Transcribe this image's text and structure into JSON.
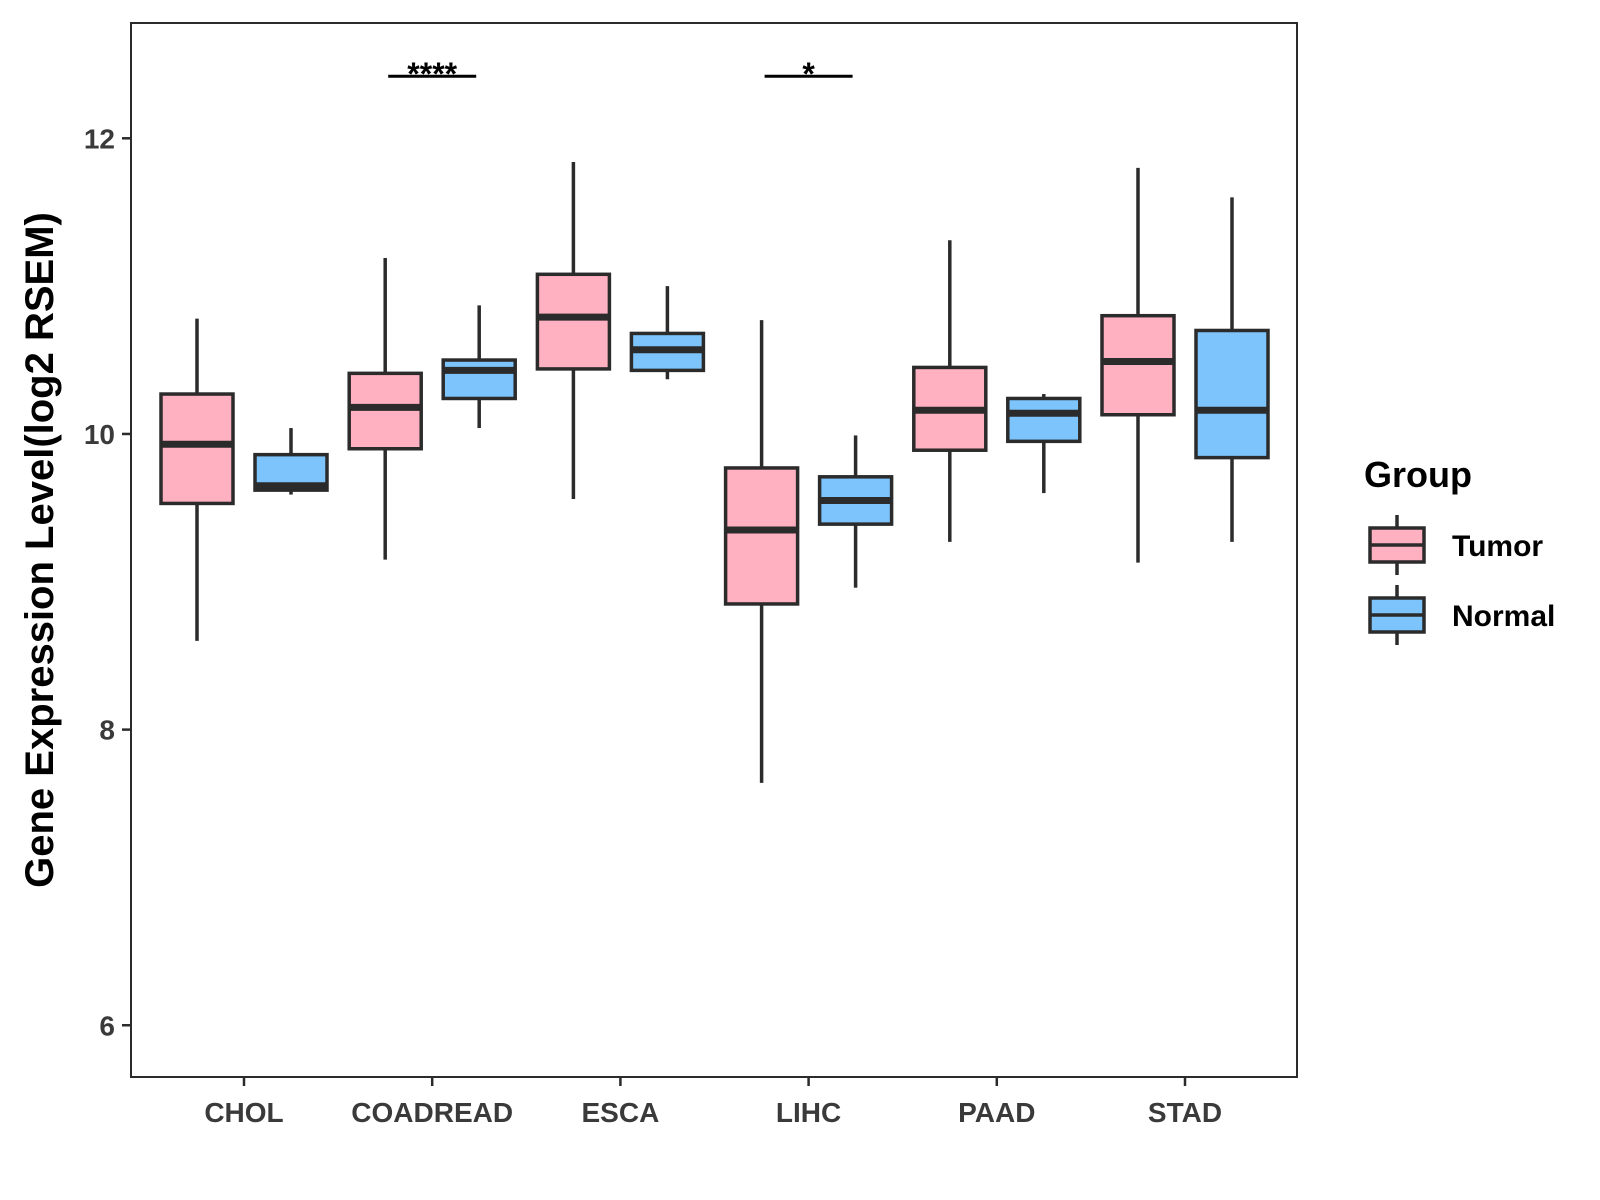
{
  "chart_data": {
    "type": "boxplot",
    "title": "",
    "xlabel": "",
    "ylabel": "Gene Expression Level(log2 RSEM)",
    "ylim": [
      5.65,
      12.78
    ],
    "yticks": [
      6,
      8,
      10,
      12
    ],
    "ytick_labels": [
      "6",
      "8",
      "10",
      "12"
    ],
    "grid": false,
    "categories": [
      "CHOL",
      "COADREAD",
      "ESCA",
      "LIHC",
      "PAAD",
      "STAD"
    ],
    "legend": {
      "title": "Group",
      "position": "right",
      "entries": [
        {
          "name": "Tumor",
          "color": "#ffb1c1"
        },
        {
          "name": "Normal",
          "color": "#7cc4fb"
        }
      ]
    },
    "series": [
      {
        "name": "Tumor",
        "color": "#ffb1c1",
        "boxes": [
          {
            "min": 8.6,
            "q1": 9.53,
            "median": 9.93,
            "q3": 10.27,
            "max": 10.78
          },
          {
            "min": 9.15,
            "q1": 9.9,
            "median": 10.18,
            "q3": 10.41,
            "max": 11.19
          },
          {
            "min": 9.56,
            "q1": 10.44,
            "median": 10.79,
            "q3": 11.08,
            "max": 11.84
          },
          {
            "min": 7.64,
            "q1": 8.85,
            "median": 9.35,
            "q3": 9.77,
            "max": 10.77
          },
          {
            "min": 9.27,
            "q1": 9.89,
            "median": 10.16,
            "q3": 10.45,
            "max": 11.31
          },
          {
            "min": 9.13,
            "q1": 10.13,
            "median": 10.49,
            "q3": 10.8,
            "max": 11.8
          }
        ]
      },
      {
        "name": "Normal",
        "color": "#7cc4fb",
        "boxes": [
          {
            "min": 9.59,
            "q1": 9.62,
            "median": 9.65,
            "q3": 9.86,
            "max": 10.04
          },
          {
            "min": 10.04,
            "q1": 10.24,
            "median": 10.43,
            "q3": 10.5,
            "max": 10.87
          },
          {
            "min": 10.37,
            "q1": 10.43,
            "median": 10.57,
            "q3": 10.68,
            "max": 11.0
          },
          {
            "min": 8.96,
            "q1": 9.39,
            "median": 9.55,
            "q3": 9.71,
            "max": 9.99
          },
          {
            "min": 9.6,
            "q1": 9.95,
            "median": 10.14,
            "q3": 10.24,
            "max": 10.27
          },
          {
            "min": 9.27,
            "q1": 9.84,
            "median": 10.16,
            "q3": 10.7,
            "max": 11.6
          }
        ]
      }
    ],
    "annotations": [
      {
        "category_index": 1,
        "label": "****",
        "y": 12.42
      },
      {
        "category_index": 3,
        "label": "*",
        "y": 12.42
      }
    ]
  }
}
